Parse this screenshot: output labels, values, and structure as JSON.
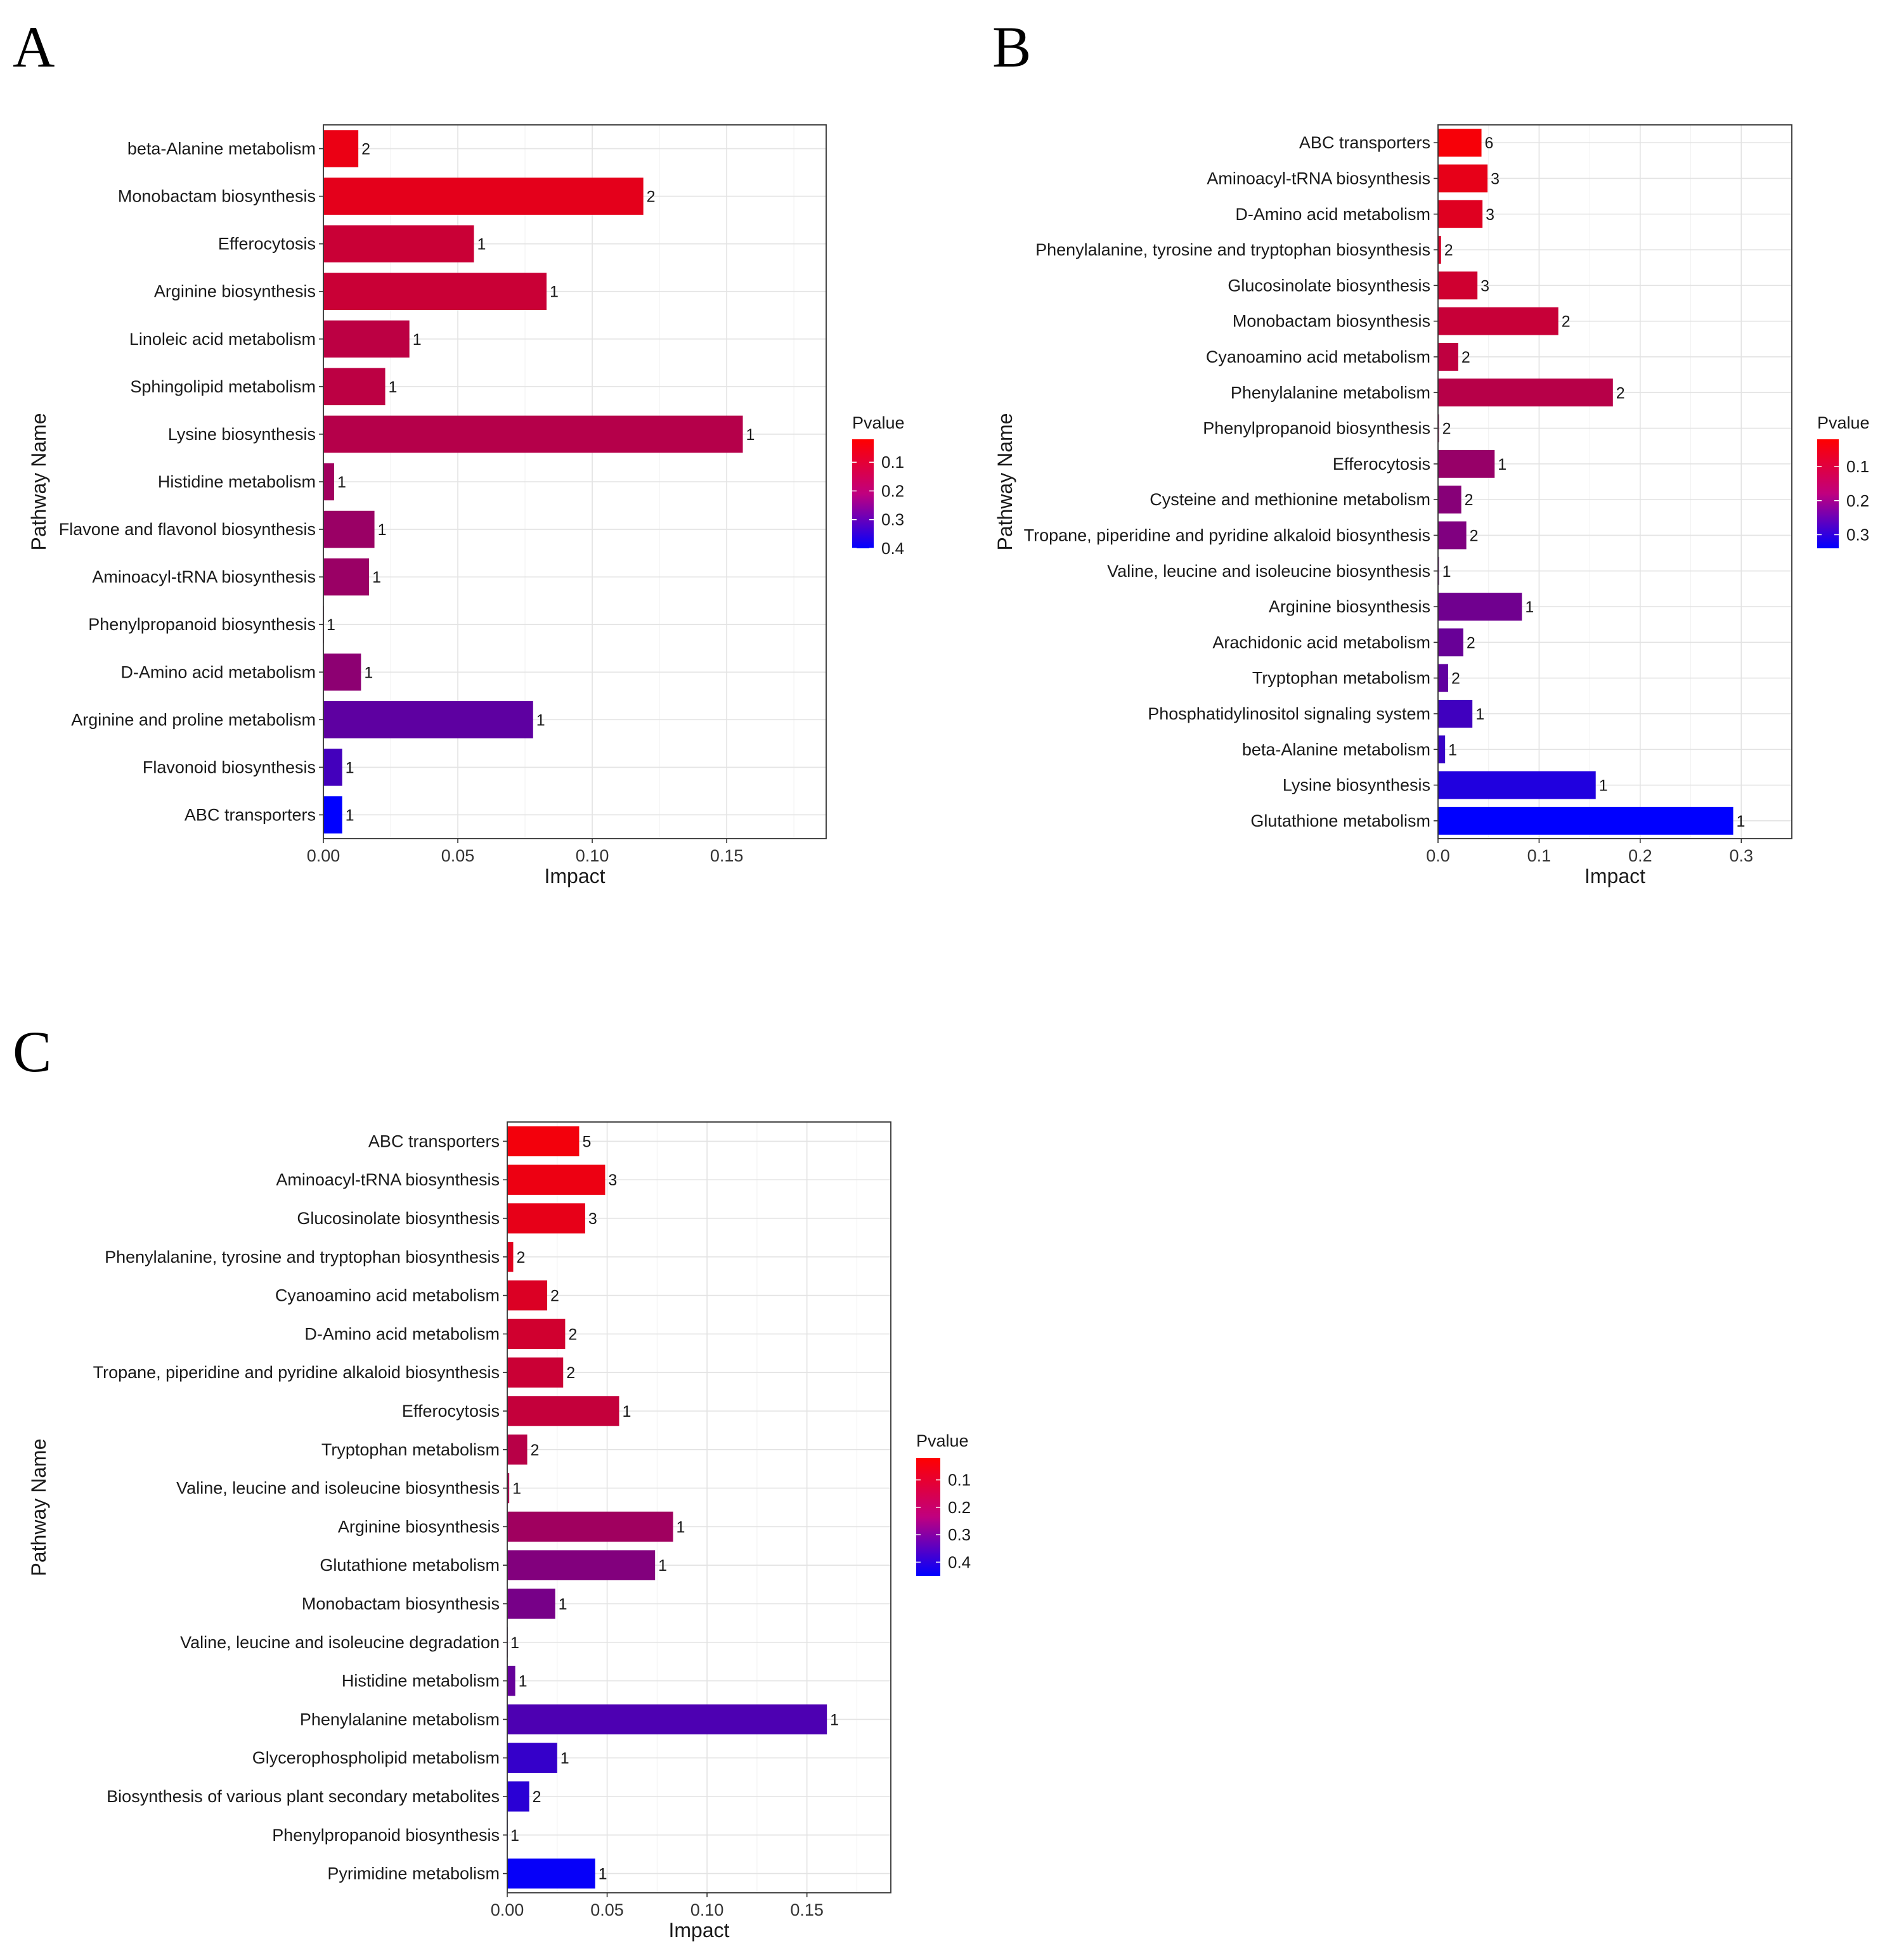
{
  "chart_data": [
    {
      "panel": "A",
      "type": "bar",
      "orientation": "horizontal",
      "xlabel": "Impact",
      "ylabel": "Pathway Name",
      "xlim": [
        0,
        0.187
      ],
      "xticks": [
        0,
        0.05,
        0.1,
        0.15
      ],
      "xtick_labels": [
        "0.00",
        "0.05",
        "0.10",
        "0.15"
      ],
      "grid": true,
      "legend": {
        "title": "Pvalue",
        "position": "right",
        "range": [
          0.02,
          0.4
        ],
        "ticks": [
          0.1,
          0.2,
          0.3,
          0.4
        ],
        "tick_labels": [
          "0.1",
          "0.2",
          "0.3",
          "0.4"
        ]
      },
      "color_low": "#FF0000",
      "color_high": "#0000FF",
      "categories": [
        "beta-Alanine metabolism",
        "Monobactam biosynthesis",
        "Efferocytosis",
        "Arginine biosynthesis",
        "Linoleic acid metabolism",
        "Sphingolipid metabolism",
        "Lysine biosynthesis",
        "Histidine metabolism",
        "Flavone and flavonol biosynthesis",
        "Aminoacyl-tRNA biosynthesis",
        "Phenylpropanoid biosynthesis",
        "D-Amino acid metabolism",
        "Arginine and proline metabolism",
        "Flavonoid biosynthesis",
        "ABC transporters"
      ],
      "impact": [
        0.013,
        0.119,
        0.056,
        0.083,
        0.032,
        0.023,
        0.156,
        0.004,
        0.019,
        0.017,
        0.0,
        0.014,
        0.078,
        0.007,
        0.007
      ],
      "pvalue": [
        0.05,
        0.06,
        0.1,
        0.1,
        0.12,
        0.12,
        0.13,
        0.16,
        0.17,
        0.17,
        0.18,
        0.19,
        0.26,
        0.3,
        0.4
      ],
      "counts": [
        "2",
        "2",
        "1",
        "1",
        "1",
        "1",
        "1",
        "1",
        "1",
        "1",
        "1",
        "1",
        "1",
        "1",
        "1"
      ]
    },
    {
      "panel": "B",
      "type": "bar",
      "orientation": "horizontal",
      "xlabel": "Impact",
      "ylabel": "Pathway Name",
      "xlim": [
        0,
        0.35
      ],
      "xticks": [
        0,
        0.1,
        0.2,
        0.3
      ],
      "xtick_labels": [
        "0.0",
        "0.1",
        "0.2",
        "0.3"
      ],
      "grid": true,
      "legend": {
        "title": "Pvalue",
        "position": "right",
        "range": [
          0.02,
          0.34
        ],
        "ticks": [
          0.1,
          0.2,
          0.3
        ],
        "tick_labels": [
          "0.1",
          "0.2",
          "0.3"
        ]
      },
      "color_low": "#FF0000",
      "color_high": "#0000FF",
      "categories": [
        "ABC transporters",
        "Aminoacyl-tRNA biosynthesis",
        "D-Amino acid metabolism",
        "Phenylalanine, tyrosine and tryptophan biosynthesis",
        "Glucosinolate biosynthesis",
        "Monobactam biosynthesis",
        "Cyanoamino acid metabolism",
        "Phenylalanine metabolism",
        "Phenylpropanoid biosynthesis",
        "Efferocytosis",
        "Cysteine and methionine metabolism",
        "Tropane, piperidine and pyridine alkaloid biosynthesis",
        "Valine, leucine and isoleucine biosynthesis",
        "Arginine biosynthesis",
        "Arachidonic acid metabolism",
        "Tryptophan metabolism",
        "Phosphatidylinositol signaling system",
        "beta-Alanine metabolism",
        "Lysine biosynthesis",
        "Glutathione metabolism"
      ],
      "impact": [
        0.043,
        0.049,
        0.044,
        0.003,
        0.039,
        0.119,
        0.02,
        0.173,
        0.001,
        0.056,
        0.023,
        0.028,
        0.001,
        0.083,
        0.025,
        0.01,
        0.034,
        0.007,
        0.156,
        0.292
      ],
      "pvalue": [
        0.03,
        0.05,
        0.06,
        0.07,
        0.08,
        0.09,
        0.1,
        0.11,
        0.13,
        0.15,
        0.17,
        0.18,
        0.19,
        0.2,
        0.21,
        0.22,
        0.26,
        0.27,
        0.3,
        0.34
      ],
      "counts": [
        "6",
        "3",
        "3",
        "2",
        "3",
        "2",
        "2",
        "2",
        "2",
        "1",
        "2",
        "2",
        "1",
        "1",
        "2",
        "2",
        "1",
        "1",
        "1",
        "1"
      ]
    },
    {
      "panel": "C",
      "type": "bar",
      "orientation": "horizontal",
      "xlabel": "Impact",
      "ylabel": "Pathway Name",
      "xlim": [
        0,
        0.192
      ],
      "xticks": [
        0,
        0.05,
        0.1,
        0.15
      ],
      "xtick_labels": [
        "0.00",
        "0.05",
        "0.10",
        "0.15"
      ],
      "grid": true,
      "legend": {
        "title": "Pvalue",
        "position": "right",
        "range": [
          0.02,
          0.45
        ],
        "ticks": [
          0.1,
          0.2,
          0.3,
          0.4
        ],
        "tick_labels": [
          "0.1",
          "0.2",
          "0.3",
          "0.4"
        ]
      },
      "color_low": "#FF0000",
      "color_high": "#0000FF",
      "categories": [
        "ABC transporters",
        "Aminoacyl-tRNA biosynthesis",
        "Glucosinolate biosynthesis",
        "Phenylalanine, tyrosine and tryptophan biosynthesis",
        "Cyanoamino acid metabolism",
        "D-Amino acid metabolism",
        "Tropane, piperidine and pyridine alkaloid biosynthesis",
        "Efferocytosis",
        "Tryptophan metabolism",
        "Valine, leucine and isoleucine biosynthesis",
        "Arginine biosynthesis",
        "Glutathione metabolism",
        "Monobactam biosynthesis",
        "Valine, leucine and isoleucine degradation",
        "Histidine metabolism",
        "Phenylalanine metabolism",
        "Glycerophospholipid metabolism",
        "Biosynthesis of various plant secondary metabolites",
        "Phenylpropanoid biosynthesis",
        "Pyrimidine metabolism"
      ],
      "impact": [
        0.036,
        0.049,
        0.039,
        0.003,
        0.02,
        0.029,
        0.028,
        0.056,
        0.01,
        0.001,
        0.083,
        0.074,
        0.024,
        0.0,
        0.004,
        0.16,
        0.025,
        0.011,
        0.0,
        0.044
      ],
      "pvalue": [
        0.04,
        0.05,
        0.06,
        0.07,
        0.08,
        0.1,
        0.11,
        0.12,
        0.14,
        0.16,
        0.18,
        0.23,
        0.25,
        0.26,
        0.28,
        0.32,
        0.36,
        0.38,
        0.4,
        0.44
      ],
      "counts": [
        "5",
        "3",
        "3",
        "2",
        "2",
        "2",
        "2",
        "1",
        "2",
        "1",
        "1",
        "1",
        "1",
        "1",
        "1",
        "1",
        "1",
        "2",
        "1",
        "1"
      ]
    }
  ]
}
